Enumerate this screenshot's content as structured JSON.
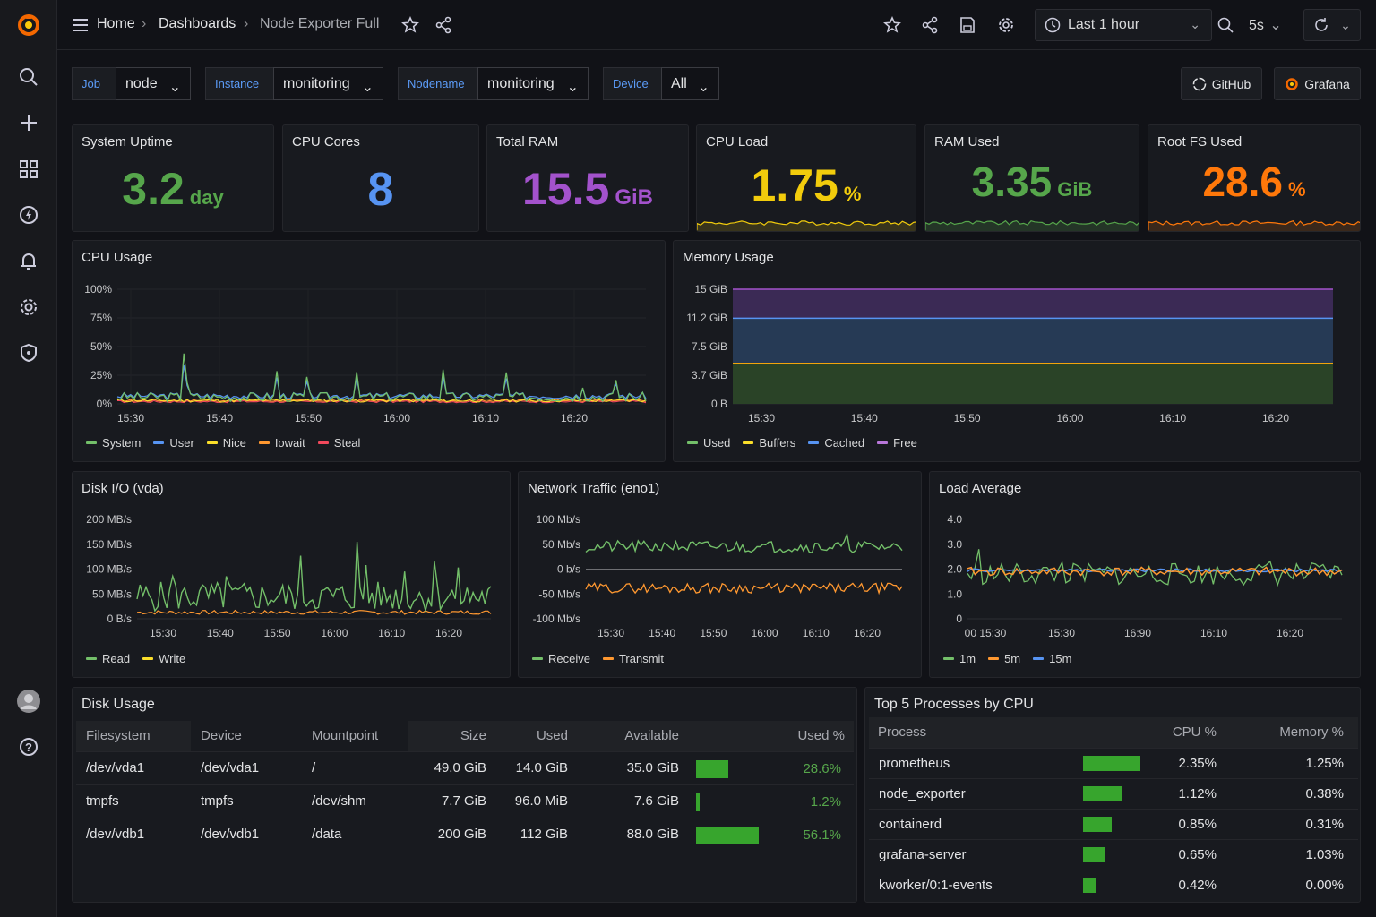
{
  "breadcrumb": {
    "home": "Home",
    "dashboards": "Dashboards",
    "current": "Node Exporter Full"
  },
  "time_picker": {
    "range": "Last 1 hour",
    "refresh": "5s"
  },
  "variables": [
    {
      "label": "Job",
      "value": "node"
    },
    {
      "label": "Instance",
      "value": "monitoring"
    },
    {
      "label": "Nodename",
      "value": "monitoring"
    },
    {
      "label": "Device",
      "value": "All"
    }
  ],
  "links": {
    "github": "GitHub",
    "grafana": "Grafana"
  },
  "stats": [
    {
      "title": "System Uptime",
      "value": "3.2",
      "unit": "day",
      "color": "#56a64b"
    },
    {
      "title": "CPU Cores",
      "value": "8",
      "unit": "",
      "color": "#5794f2"
    },
    {
      "title": "Total RAM",
      "value": "15.5",
      "unit": "GiB",
      "color": "#a352cc"
    },
    {
      "title": "CPU Load",
      "value": "1.75",
      "unit": "%",
      "color": "#f2cc0c"
    },
    {
      "title": "RAM Used",
      "value": "3.35",
      "unit": "GiB",
      "color": "#56a64b"
    },
    {
      "title": "Root FS Used",
      "value": "28.6",
      "unit": "%",
      "color": "#ff780a"
    }
  ],
  "panels": {
    "cpu": {
      "title": "CPU Usage",
      "y_ticks": [
        "100%",
        "75%",
        "50%",
        "25%",
        "0%"
      ],
      "x_ticks": [
        "15:30",
        "15:40",
        "15:50",
        "16:00",
        "16:10",
        "16:20"
      ],
      "legend": [
        "System",
        "User",
        "Nice",
        "Iowait",
        "Steal"
      ]
    },
    "mem": {
      "title": "Memory Usage",
      "y_ticks": [
        "15 GiB",
        "11.2 GiB",
        "7.5 GiB",
        "3.7 GiB",
        "0 B"
      ],
      "x_ticks": [
        "15:30",
        "15:40",
        "15:50",
        "16:00",
        "16:10",
        "16:20"
      ],
      "legend": [
        "Used",
        "Buffers",
        "Cached",
        "Free"
      ]
    },
    "disk_io": {
      "title": "Disk I/O (vda)",
      "y_ticks": [
        "200 MB/s",
        "150 MB/s",
        "100 MB/s",
        "50 MB/s",
        "0 B/s"
      ],
      "x_ticks": [
        "15:30",
        "15:40",
        "15:50",
        "16:00",
        "16:10",
        "16:20"
      ],
      "legend": [
        "Read",
        "Write"
      ]
    },
    "net": {
      "title": "Network Traffic (eno1)",
      "y_ticks": [
        "100 Mb/s",
        "50 Mb/s",
        "0 b/s",
        "-50 Mb/s",
        "-100 Mb/s"
      ],
      "x_ticks": [
        "15:30",
        "15:40",
        "15:50",
        "16:00",
        "16:10",
        "16:20"
      ],
      "legend": [
        "Receive",
        "Transmit"
      ]
    },
    "load": {
      "title": "Load Average",
      "y_ticks": [
        "4.0",
        "3.0",
        "2.0",
        "1.0",
        "0"
      ],
      "x_ticks": [
        "00 15:30",
        "15:30",
        "16:90",
        "16:10",
        "16:20"
      ],
      "legend": [
        "1m",
        "5m",
        "15m"
      ]
    }
  },
  "colors": {
    "green": "#73bf69",
    "blue": "#5794f2",
    "yellow": "#fade2a",
    "orange": "#ff9830",
    "red": "#f2495c",
    "purple": "#b877d9"
  },
  "disk_usage": {
    "title": "Disk Usage",
    "headers": [
      "Filesystem",
      "Device",
      "Mountpoint",
      "Size",
      "Used",
      "Available",
      "Used %"
    ],
    "rows": [
      {
        "fs": "/dev/vda1",
        "device": "/dev/vda1",
        "mount": "/",
        "size": "49.0 GiB",
        "used": "14.0 GiB",
        "avail": "35.0 GiB",
        "pct": "28.6%",
        "frac": 0.286
      },
      {
        "fs": "tmpfs",
        "device": "tmpfs",
        "mount": "/dev/shm",
        "size": "7.7 GiB",
        "used": "96.0 MiB",
        "avail": "7.6 GiB",
        "pct": "1.2%",
        "frac": 0.012
      },
      {
        "fs": "/dev/vdb1",
        "device": "/dev/vdb1",
        "mount": "/data",
        "size": "200 GiB",
        "used": "112 GiB",
        "avail": "88.0 GiB",
        "pct": "56.1%",
        "frac": 0.561
      }
    ]
  },
  "top_procs": {
    "title": "Top 5 Processes by CPU",
    "headers": [
      "Process",
      "CPU %",
      "Memory %"
    ],
    "rows": [
      {
        "name": "prometheus",
        "cpu": "2.35%",
        "mem": "1.25%",
        "frac": 1.0
      },
      {
        "name": "node_exporter",
        "cpu": "1.12%",
        "mem": "0.38%",
        "frac": 0.68
      },
      {
        "name": "containerd",
        "cpu": "0.85%",
        "mem": "0.31%",
        "frac": 0.5
      },
      {
        "name": "grafana-server",
        "cpu": "0.65%",
        "mem": "1.03%",
        "frac": 0.37
      },
      {
        "name": "kworker/0:1-events",
        "cpu": "0.42%",
        "mem": "0.00%",
        "frac": 0.24
      }
    ]
  },
  "icons": [
    "grafana-logo-icon",
    "search-icon",
    "plus-icon",
    "dashboards-icon",
    "explore-icon",
    "alerting-icon",
    "settings-icon",
    "shield-icon",
    "user-avatar-icon",
    "help-icon",
    "menu-icon",
    "star-icon",
    "share-icon",
    "save-icon",
    "clock-icon",
    "zoom-icon",
    "refresh-icon"
  ]
}
